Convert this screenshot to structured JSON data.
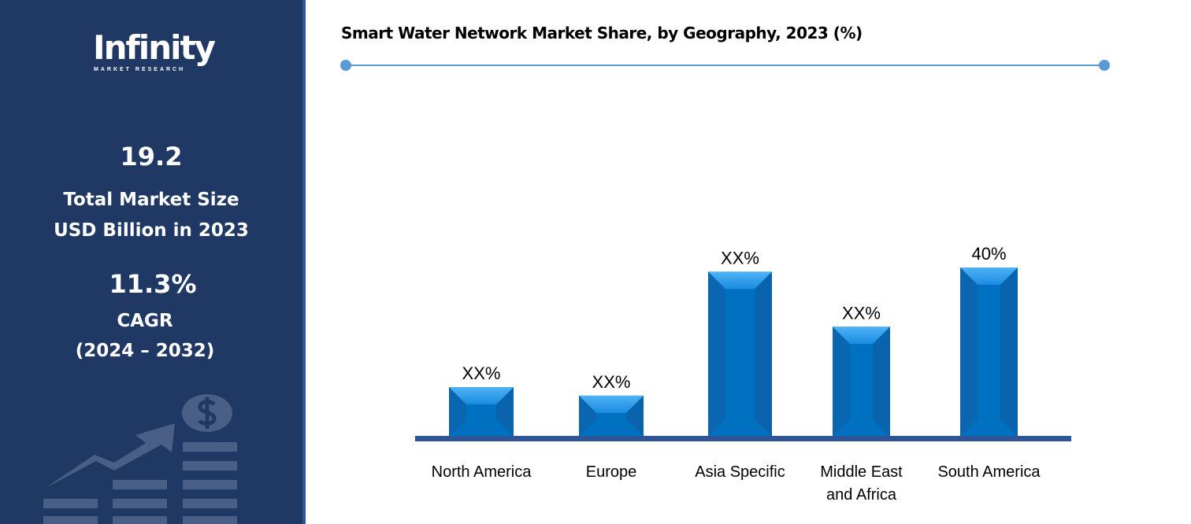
{
  "sidebar": {
    "logo_text": "Infinity",
    "logo_sub": "MARKET RESEARCH",
    "market_size": "19.2",
    "market_size_label1": "Total Market Size",
    "market_size_label2": "USD Billion in 2023",
    "cagr": "11.3%",
    "cagr_label": "CAGR",
    "cagr_period": "(2024 – 2032)"
  },
  "colors": {
    "sidebar": "#203864",
    "bar": "#0070c0",
    "baseline": "#2f5597",
    "rule": "#5b9bd5"
  },
  "chart_data": {
    "type": "bar",
    "title": "Smart Water Network Market Share, by Geography, 2023 (%)",
    "categories": [
      "North America",
      "Europe",
      "Asia Specific",
      "Middle East and Africa",
      "South America"
    ],
    "category_lines": [
      [
        "North America"
      ],
      [
        "Europe"
      ],
      [
        "Asia Specific"
      ],
      [
        "Middle East",
        "and Africa"
      ],
      [
        "South America"
      ]
    ],
    "values": [
      11.7,
      9.7,
      39,
      26,
      40
    ],
    "data_labels": [
      "XX%",
      "XX%",
      "XX%",
      "XX%",
      "40%"
    ],
    "ylim": [
      0,
      40
    ],
    "grid": false,
    "legend": "none"
  }
}
